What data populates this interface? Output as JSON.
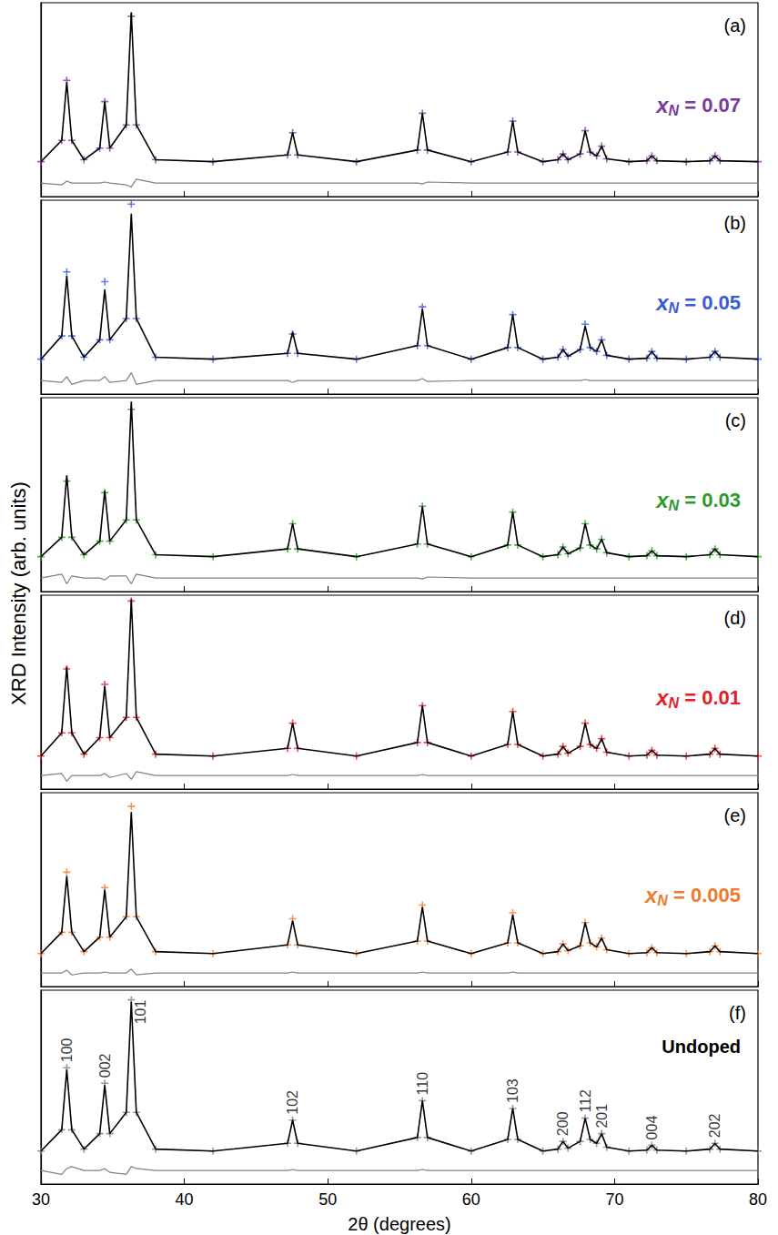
{
  "chart_data": {
    "type": "line",
    "xlabel": "2θ (degrees)",
    "ylabel": "XRD Intensity (arb. units)",
    "xlim": [
      30,
      80
    ],
    "xticks": [
      30,
      40,
      50,
      60,
      70,
      80
    ],
    "ylim": [
      0,
      100
    ],
    "tick_labels": "x",
    "grid": false,
    "x": [
      30,
      31.45,
      31.8,
      32.15,
      33,
      34.1,
      34.45,
      34.8,
      35.95,
      36.3,
      36.65,
      38,
      42,
      47.2,
      47.55,
      47.9,
      52,
      56.25,
      56.6,
      56.95,
      60,
      62.55,
      62.9,
      63.25,
      65,
      66.05,
      66.4,
      66.75,
      67.6,
      67.95,
      68.3,
      68.75,
      69.1,
      69.45,
      71,
      72.25,
      72.6,
      72.95,
      75,
      76.65,
      77,
      77.35,
      80
    ],
    "panels": [
      {
        "label": "(a)",
        "annotation": {
          "symbol": "x",
          "subscript": "N",
          "text": " = 0.07",
          "color": "#7a3a9e"
        },
        "series": [
          {
            "type": "scatter",
            "marker": "cross",
            "color": "#7a3a9e",
            "values": [
              18,
              29,
              60,
              29,
              19,
              25,
              49,
              25,
              37,
              93,
              37,
              19,
              18,
              21.5,
              33,
              21.5,
              18,
              24,
              43,
              24,
              18,
              23,
              39,
              23,
              18,
              19,
              22,
              19,
              22,
              34,
              23,
              21,
              26,
              19.5,
              18,
              18.5,
              21,
              18.5,
              18,
              18.5,
              21,
              18.5,
              18
            ]
          },
          {
            "type": "line",
            "line_style": "solid",
            "color": "#000000",
            "values": [
              18,
              29,
              59,
              29,
              19,
              25,
              49,
              25,
              37,
              95,
              37,
              19,
              18,
              21.5,
              33,
              21.5,
              18,
              24,
              43,
              24,
              18,
              23,
              39,
              23,
              18,
              19,
              22,
              19,
              22,
              34,
              23,
              21,
              26,
              19.5,
              18,
              18.5,
              21,
              18.5,
              18,
              18.5,
              21,
              18.5,
              18
            ]
          },
          {
            "type": "line",
            "line_style": "solid",
            "color": "#808080",
            "values": [
              7,
              6,
              8,
              7,
              7,
              7,
              7.5,
              7,
              6,
              5,
              9,
              7,
              7,
              7,
              7,
              7,
              7,
              7,
              6.5,
              7.5,
              7,
              7,
              7,
              7,
              7,
              7,
              7,
              7,
              7,
              7,
              7,
              7,
              7,
              7,
              7,
              7,
              7,
              7,
              7,
              7,
              7,
              7,
              7
            ]
          }
        ]
      },
      {
        "label": "(b)",
        "annotation": {
          "symbol": "x",
          "subscript": "N",
          "text": " = 0.05",
          "color": "#3a5bd6"
        },
        "series": [
          {
            "type": "scatter",
            "marker": "cross",
            "color": "#3a5bd6",
            "values": [
              18,
              30,
              63,
              30,
              19,
              28,
              58,
              28,
              39,
              98,
              39,
              19,
              18,
              21,
              31,
              21,
              18,
              25,
              45,
              25,
              18,
              24,
              41,
              24,
              18,
              19,
              23,
              19.5,
              23,
              36,
              24,
              22,
              28,
              20,
              18,
              18.5,
              22,
              18.5,
              18,
              19,
              22,
              19,
              18
            ]
          },
          {
            "type": "line",
            "line_style": "solid",
            "color": "#000000",
            "values": [
              18,
              30,
              61,
              30,
              19,
              28,
              54,
              28,
              39,
              93,
              39,
              19,
              18,
              21,
              32,
              21,
              18,
              25,
              44,
              25,
              18,
              24,
              41,
              24,
              18,
              19,
              23,
              19.5,
              23,
              35,
              24,
              22,
              28,
              20,
              18,
              18.5,
              22,
              18.5,
              18,
              19,
              22,
              19,
              18
            ]
          },
          {
            "type": "line",
            "line_style": "solid",
            "color": "#808080",
            "values": [
              7,
              6,
              9,
              5,
              7,
              7,
              9,
              6,
              7,
              11,
              5,
              7,
              7,
              7,
              6,
              7,
              7,
              7,
              8,
              6.5,
              7,
              7,
              7,
              7,
              7,
              7,
              7,
              7,
              7,
              7.5,
              7,
              7,
              7,
              7,
              7,
              7,
              7,
              7,
              7,
              7,
              7,
              7,
              7
            ]
          }
        ]
      },
      {
        "label": "(c)",
        "annotation": {
          "symbol": "x",
          "subscript": "N",
          "text": " = 0.03",
          "color": "#2e9a2e"
        },
        "series": [
          {
            "type": "scatter",
            "marker": "cross",
            "color": "#2e9a2e",
            "values": [
              18,
              28,
              57,
              28,
              19,
              26,
              51,
              26,
              37,
              94,
              37,
              19,
              18,
              22,
              35,
              22,
              18,
              24.5,
              44,
              24.5,
              18,
              24,
              41,
              24,
              18,
              19,
              23,
              19.5,
              22.5,
              35,
              24,
              22,
              27,
              20,
              18,
              18.5,
              21,
              18.5,
              18,
              19,
              22,
              19,
              18
            ]
          },
          {
            "type": "line",
            "line_style": "solid",
            "color": "#000000",
            "values": [
              18,
              28,
              60,
              28,
              19,
              26,
              52,
              26,
              37,
              98,
              37,
              19,
              18,
              22,
              35,
              22,
              18,
              24.5,
              44,
              24.5,
              18,
              24,
              41,
              24,
              18,
              19,
              23,
              19.5,
              22.5,
              35,
              24,
              22,
              27,
              20,
              18,
              18.5,
              21,
              18.5,
              18,
              19,
              22,
              19,
              18
            ]
          },
          {
            "type": "line",
            "line_style": "solid",
            "color": "#808080",
            "values": [
              7,
              9,
              4,
              8,
              7,
              7,
              6,
              8,
              8,
              4,
              9,
              7,
              7,
              7,
              7,
              7,
              7,
              7,
              6.5,
              7.5,
              7,
              7,
              7,
              7,
              7,
              7,
              7,
              7,
              7,
              7,
              7,
              7,
              7,
              7,
              7,
              7,
              7,
              7,
              7,
              7,
              7,
              7,
              7
            ]
          }
        ]
      },
      {
        "label": "(d)",
        "annotation": {
          "symbol": "x",
          "subscript": "N",
          "text": " = 0.01",
          "color": "#e3202a"
        },
        "series": [
          {
            "type": "scatter",
            "marker": "cross",
            "color": "#e3202a",
            "values": [
              17,
              29,
              62,
              29,
              18,
              26.5,
              54,
              26.5,
              37,
              97,
              37,
              18,
              17,
              21,
              34,
              21,
              17,
              24,
              43,
              24,
              17,
              23,
              40,
              23,
              17,
              18,
              22,
              18.5,
              22,
              34,
              23,
              21,
              26,
              19,
              17,
              17.5,
              20,
              17.5,
              17,
              18,
              21,
              18,
              17
            ]
          },
          {
            "type": "line",
            "line_style": "solid",
            "color": "#000000",
            "values": [
              17,
              29,
              63,
              29,
              18,
              26.5,
              53,
              26.5,
              37,
              98,
              37,
              18,
              17,
              21,
              34,
              21,
              17,
              24,
              43,
              24,
              17,
              23,
              40,
              23,
              17,
              18,
              22,
              18.5,
              22,
              34,
              23,
              21,
              26,
              19,
              17,
              17.5,
              20,
              17.5,
              17,
              18,
              21,
              18,
              17
            ]
          },
          {
            "type": "line",
            "line_style": "solid",
            "color": "#808080",
            "values": [
              7,
              8,
              4,
              7,
              7,
              7,
              8,
              6,
              8,
              5,
              9,
              7,
              7,
              7,
              7.5,
              7,
              7,
              7,
              7.5,
              7,
              7,
              7,
              7,
              7,
              7,
              7,
              7,
              7,
              7,
              7,
              7,
              7,
              7,
              7,
              7,
              7,
              7,
              7,
              7,
              7,
              7,
              7,
              7
            ]
          }
        ]
      },
      {
        "label": "(e)",
        "annotation": {
          "symbol": "x",
          "subscript": "N",
          "text": " = 0.005",
          "color": "#f07a2e"
        },
        "series": [
          {
            "type": "scatter",
            "marker": "cross",
            "color": "#f07a2e",
            "values": [
              17,
              28,
              59,
              28,
              18,
              25.5,
              51,
              25.5,
              36,
              93,
              36,
              18,
              17,
              21.5,
              35,
              21.5,
              17,
              23.5,
              42,
              23.5,
              17,
              22.5,
              38,
              22.5,
              17,
              18,
              22,
              18.5,
              21,
              33,
              22.5,
              20.5,
              25,
              19,
              17,
              17.5,
              20,
              17.5,
              17,
              18,
              21,
              18,
              17
            ]
          },
          {
            "type": "line",
            "line_style": "solid",
            "color": "#000000",
            "values": [
              17,
              28,
              57,
              28,
              18,
              25.5,
              50,
              25.5,
              36,
              90,
              36,
              18,
              17,
              21.5,
              34,
              21.5,
              17,
              23.5,
              41,
              23.5,
              17,
              22.5,
              37,
              22.5,
              17,
              18,
              22,
              18.5,
              21,
              33,
              22.5,
              20.5,
              25,
              19,
              17,
              17.5,
              20,
              17.5,
              17,
              18,
              21,
              18,
              17
            ]
          },
          {
            "type": "line",
            "line_style": "solid",
            "color": "#808080",
            "values": [
              7,
              7,
              8.5,
              6,
              7,
              7,
              7.5,
              7,
              7,
              9,
              6,
              7,
              7,
              7,
              7.5,
              7,
              7,
              7,
              7.5,
              7,
              7,
              7,
              7.5,
              7,
              7,
              7,
              7,
              7,
              7,
              7,
              7,
              7,
              7,
              7,
              7,
              7,
              7,
              7,
              7,
              7,
              7,
              7,
              7
            ]
          }
        ]
      },
      {
        "label": "(f)",
        "annotation": {
          "text": "Undoped",
          "color": "#000000"
        },
        "series": [
          {
            "type": "scatter",
            "marker": "cross",
            "color": "#7f7f7f",
            "values": [
              17,
              28,
              60,
              28,
              18,
              26,
              52,
              26,
              37,
              95,
              37,
              18,
              17,
              21,
              33,
              21,
              17,
              24,
              43,
              24,
              17,
              23,
              39,
              23,
              17,
              18,
              22,
              18.5,
              22,
              34,
              23,
              21,
              26,
              19,
              17,
              17.5,
              20,
              17.5,
              17,
              18,
              21,
              18,
              17
            ]
          },
          {
            "type": "line",
            "line_style": "solid",
            "color": "#000000",
            "values": [
              17,
              28,
              59,
              28,
              18,
              26,
              51,
              26,
              37,
              94,
              37,
              18,
              17,
              21,
              33,
              21,
              17,
              24,
              43,
              24,
              17,
              23,
              39,
              23,
              17,
              18,
              22,
              18.5,
              22,
              34,
              23,
              21,
              26,
              19,
              17,
              17.5,
              20,
              17.5,
              17,
              18,
              21,
              18,
              17
            ]
          },
          {
            "type": "line",
            "line_style": "solid",
            "color": "#808080",
            "values": [
              7,
              5,
              8,
              9,
              7,
              7,
              8,
              6,
              5,
              9,
              8,
              7,
              7,
              7,
              7.5,
              7,
              7,
              7,
              7.5,
              7,
              7,
              7,
              7,
              7,
              7,
              7,
              7,
              7,
              7,
              7,
              7,
              7,
              7,
              7,
              7,
              7,
              7,
              7,
              7,
              7,
              7,
              7,
              7
            ]
          }
        ],
        "peak_labels": [
          {
            "x": 31.8,
            "label": "100"
          },
          {
            "x": 34.45,
            "label": "002"
          },
          {
            "x": 36.3,
            "label": "101"
          },
          {
            "x": 47.55,
            "label": "102"
          },
          {
            "x": 56.6,
            "label": "110"
          },
          {
            "x": 62.9,
            "label": "103"
          },
          {
            "x": 66.4,
            "label": "200"
          },
          {
            "x": 67.95,
            "label": "112"
          },
          {
            "x": 69.1,
            "label": "201"
          },
          {
            "x": 72.6,
            "label": "004"
          },
          {
            "x": 77,
            "label": "202"
          }
        ]
      }
    ]
  }
}
